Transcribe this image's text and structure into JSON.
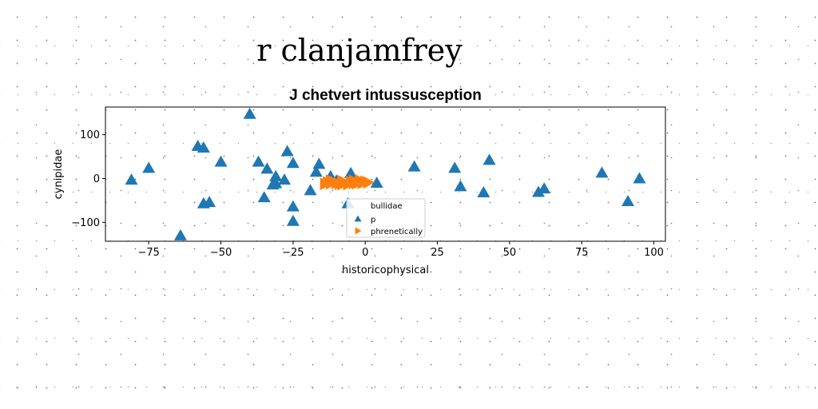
{
  "page": {
    "title": "r clanjamfrey"
  },
  "chart_data": {
    "type": "scatter",
    "title": "J chetvert intussusception",
    "xlabel": "historicophysical",
    "ylabel": "cynipidae",
    "xlim": [
      -90,
      104
    ],
    "ylim": [
      -143,
      163
    ],
    "xticks": [
      -75,
      -50,
      -25,
      0,
      25,
      50,
      75,
      100
    ],
    "yticks": [
      -100,
      0,
      100
    ],
    "grid": false,
    "legend": {
      "title": "bullidae",
      "placement": "lower-center"
    },
    "series": [
      {
        "name": "p",
        "marker": "triangle-up",
        "color": "#1f77b4",
        "points": [
          [
            -40,
            147
          ],
          [
            -58,
            74
          ],
          [
            -56,
            70
          ],
          [
            -75,
            24
          ],
          [
            -81,
            -3
          ],
          [
            -50,
            38
          ],
          [
            -37,
            38
          ],
          [
            -34,
            22
          ],
          [
            -31,
            5
          ],
          [
            -31,
            -11
          ],
          [
            -32,
            -14
          ],
          [
            -28,
            -3
          ],
          [
            -27,
            62
          ],
          [
            -25,
            35
          ],
          [
            -35,
            -43
          ],
          [
            -25,
            -64
          ],
          [
            -25,
            -97
          ],
          [
            -56,
            -57
          ],
          [
            -54,
            -54
          ],
          [
            -64,
            -130
          ],
          [
            -19,
            -27
          ],
          [
            -17,
            15
          ],
          [
            -16,
            33
          ],
          [
            -12,
            5
          ],
          [
            -10,
            -5
          ],
          [
            -6,
            -57
          ],
          [
            -5,
            12
          ],
          [
            4,
            -10
          ],
          [
            17,
            27
          ],
          [
            31,
            24
          ],
          [
            33,
            -18
          ],
          [
            41,
            -32
          ],
          [
            43,
            42
          ],
          [
            60,
            -31
          ],
          [
            62,
            -23
          ],
          [
            82,
            13
          ],
          [
            91,
            -52
          ],
          [
            95,
            0
          ]
        ]
      },
      {
        "name": "phrenetically",
        "marker": "triangle-right",
        "color": "#ff7f0e",
        "points": [
          [
            -14,
            -12
          ],
          [
            -13,
            -9
          ],
          [
            -12,
            -11
          ],
          [
            -11,
            -7
          ],
          [
            -10,
            -10
          ],
          [
            -9,
            -12
          ],
          [
            -8,
            -6
          ],
          [
            -7,
            -9
          ],
          [
            -6,
            -13
          ],
          [
            -5,
            -8
          ],
          [
            -4,
            -5
          ],
          [
            -3,
            -11
          ],
          [
            -2,
            -8
          ],
          [
            -1,
            -10
          ],
          [
            0,
            -7
          ],
          [
            1,
            -9
          ],
          [
            -12,
            -5
          ],
          [
            -8,
            -13
          ],
          [
            -4,
            -10
          ],
          [
            -2,
            -4
          ]
        ]
      }
    ]
  }
}
